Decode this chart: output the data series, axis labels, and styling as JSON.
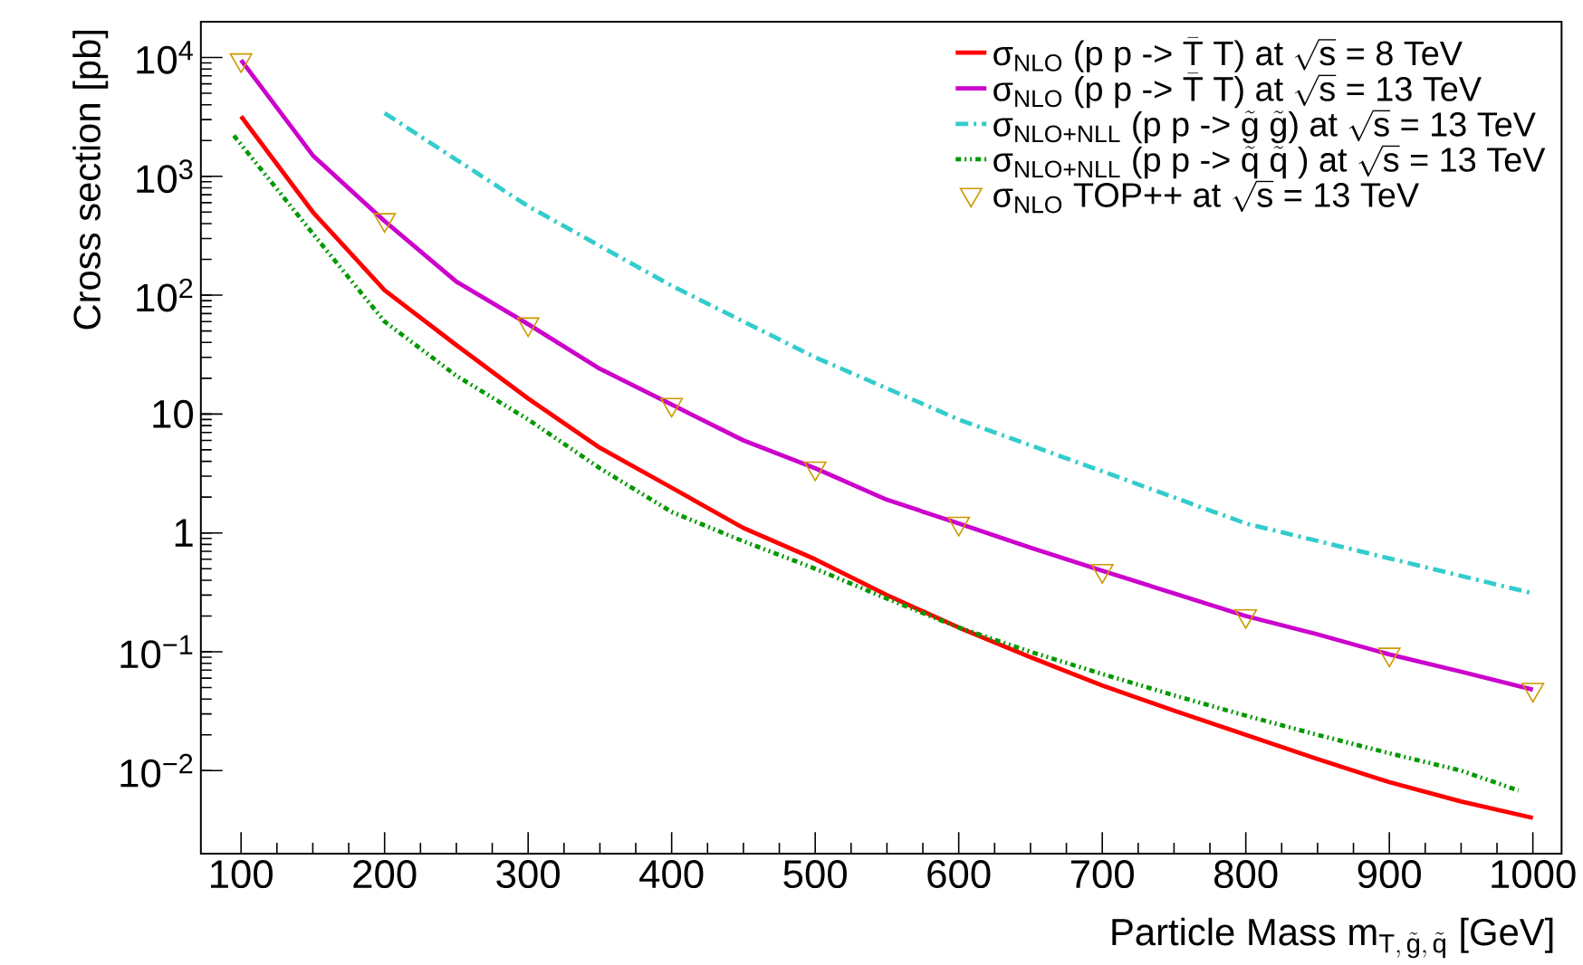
{
  "chart_data": {
    "type": "line",
    "xlabel": "\\text{Particle Mass m}_{\\text{T},\\,\\tilde{\\text{g}},\\,\\tilde{\\text{q}}}\\text{ [GeV]}",
    "ylabel": "Cross section [pb]",
    "log": "y",
    "xlim": [
      72,
      1020
    ],
    "ylim": [
      0.002,
      20000
    ],
    "xticks": [
      100,
      200,
      300,
      400,
      500,
      600,
      700,
      800,
      900,
      1000
    ],
    "yticks": [
      {
        "value": 0.01,
        "label": "10$^{−2}$"
      },
      {
        "value": 0.1,
        "label": "10$^{−1}$"
      },
      1,
      10,
      {
        "value": 100,
        "label": "10$^{2}$"
      },
      {
        "value": 1000,
        "label": "10$^{3}$"
      },
      {
        "value": 10000,
        "label": "10$^{4}$"
      }
    ],
    "legend": "top right",
    "grid": false,
    "series": [
      {
        "name": "\\text{σ}_{\\text{NLO}}\\text{ (p p -> }\\bar{\\text{T}}\\text{ T) at }\\sqrt{\\text{s}}\\text{ = 8 TeV}",
        "color": "#ff0000",
        "line_style": "solid",
        "x": [
          100,
          150,
          200,
          250,
          300,
          350,
          400,
          450,
          500,
          550,
          600,
          650,
          700,
          750,
          800,
          850,
          900,
          950,
          1000
        ],
        "values": [
          3200,
          500,
          110,
          38,
          13.5,
          5.2,
          2.4,
          1.1,
          0.6,
          0.3,
          0.16,
          0.09,
          0.052,
          0.032,
          0.02,
          0.0125,
          0.008,
          0.0055,
          0.004
        ]
      },
      {
        "name": "\\text{σ}_{\\text{NLO}}\\text{ (p p -> }\\bar{\\text{T}}\\text{ T) at }\\sqrt{\\text{s}}\\text{ = 13 TeV}",
        "color": "#cc00cc",
        "line_style": "solid",
        "x": [
          100,
          150,
          200,
          250,
          300,
          350,
          400,
          450,
          500,
          550,
          600,
          650,
          700,
          750,
          800,
          850,
          900,
          950,
          1000
        ],
        "values": [
          9500,
          1500,
          420,
          130,
          57,
          24,
          12,
          6,
          3.5,
          1.9,
          1.2,
          0.75,
          0.48,
          0.31,
          0.2,
          0.14,
          0.095,
          0.068,
          0.048
        ]
      },
      {
        "name": "\\text{σ}_{\\text{NLO+NLL}}\\text{ (p p -> }\\tilde{\\text{g}}\\ \\tilde{\\text{g}}\\text{) at }\\sqrt{\\text{s}}\\text{ = 13 TeV}",
        "color": "#33cccc",
        "line_style": "dashed",
        "x": [
          200,
          300,
          400,
          500,
          600,
          700,
          800,
          900,
          1000
        ],
        "values": [
          3400,
          560,
          120,
          30,
          9,
          3.3,
          1.2,
          0.61,
          0.31
        ]
      },
      {
        "name": "\\text{σ}_{\\text{NLO+NLL}}\\text{ (p p -> }\\tilde{\\text{q}}\\ \\tilde{\\text{q}}\\text{ ) at }\\sqrt{\\text{s}}\\text{ = 13 TeV}",
        "color": "#009900",
        "line_style": "dotted",
        "x": [
          95,
          150,
          200,
          250,
          300,
          350,
          400,
          450,
          500,
          550,
          600,
          650,
          700,
          750,
          800,
          850,
          900,
          950,
          990
        ],
        "values": [
          2200,
          330,
          60,
          21,
          9,
          3.5,
          1.5,
          0.85,
          0.5,
          0.28,
          0.16,
          0.1,
          0.065,
          0.043,
          0.029,
          0.02,
          0.014,
          0.01,
          0.0068
        ]
      },
      {
        "name": "\\text{σ}_{\\text{NLO}}\\text{ TOP++ at }\\sqrt{\\text{s}}\\text{ = 13 TeV}",
        "type": "scatter",
        "marker": "triangle",
        "color": "#cc9900",
        "x": [
          100,
          200,
          300,
          400,
          500,
          600,
          700,
          800,
          900,
          1000
        ],
        "values": [
          9500,
          430,
          57,
          12,
          3.5,
          1.2,
          0.48,
          0.2,
          0.095,
          0.048
        ]
      }
    ]
  }
}
